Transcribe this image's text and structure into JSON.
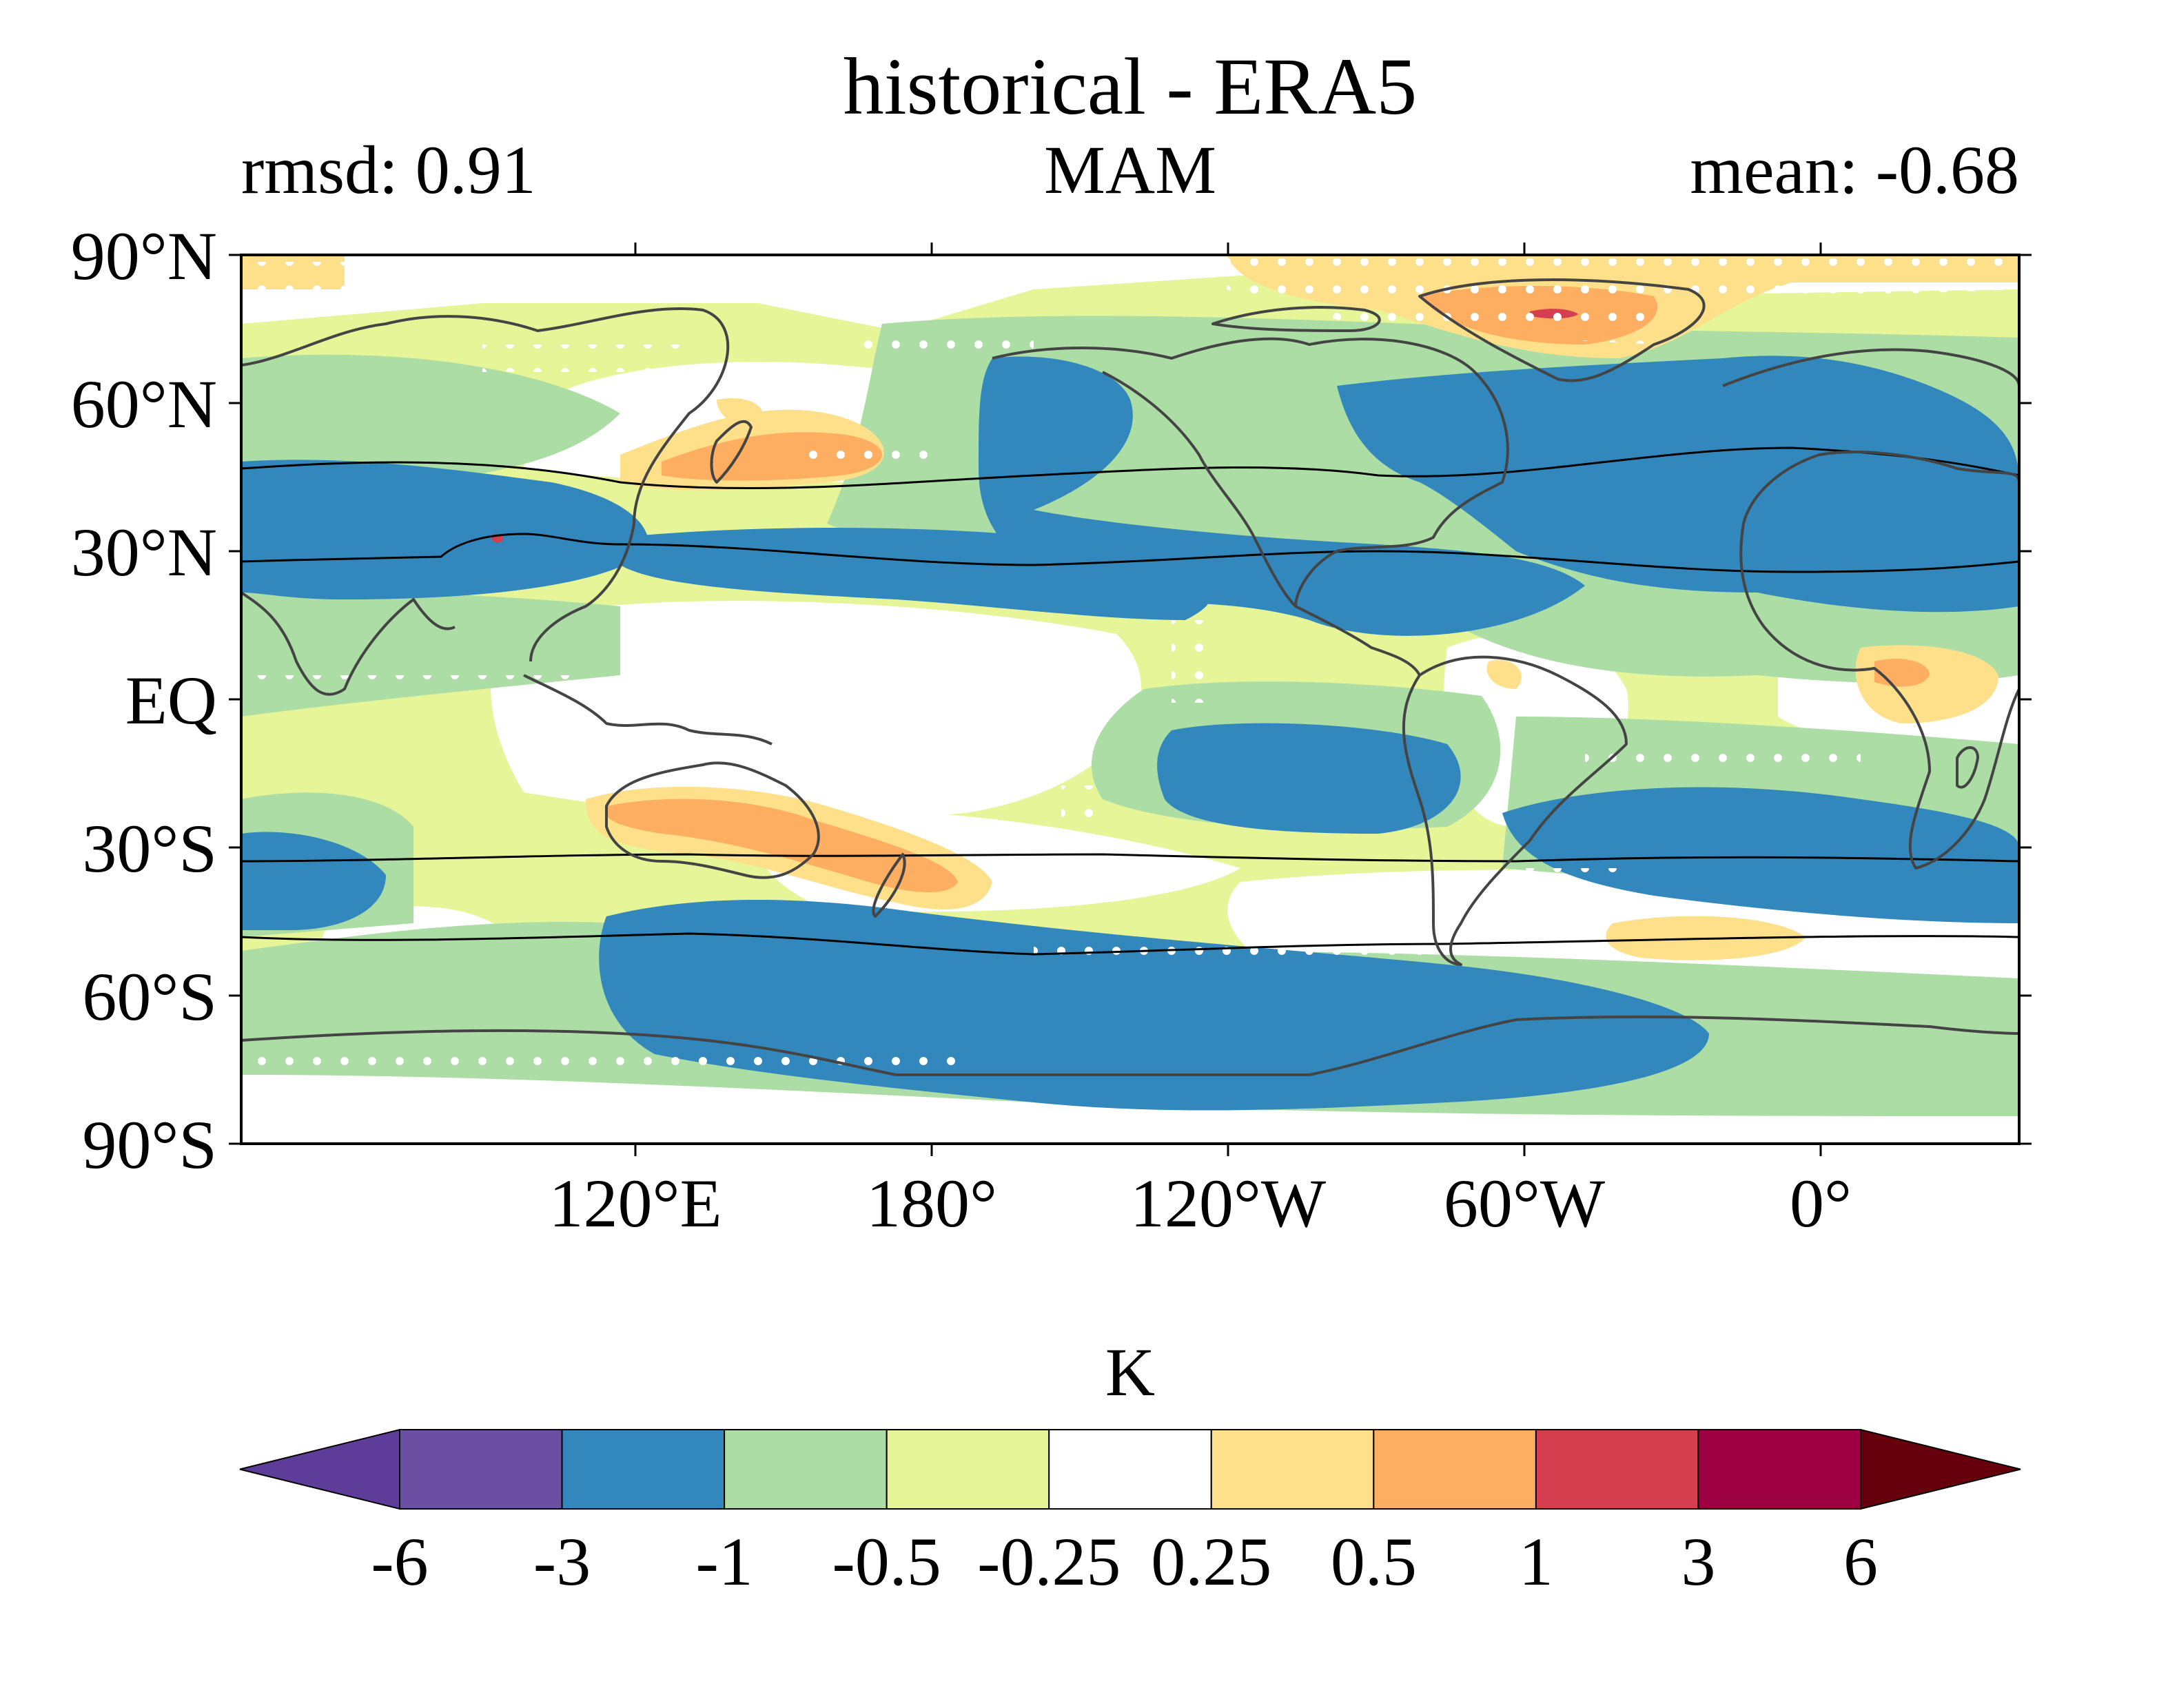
{
  "title": "historical - ERA5",
  "stats": {
    "rmsd": "rmsd: 0.91",
    "season": "MAM",
    "mean": "mean: -0.68"
  },
  "axes": {
    "y_ticks": [
      "90°N",
      "60°N",
      "30°N",
      "EQ",
      "30°S",
      "60°S",
      "90°S"
    ],
    "x_ticks": [
      "120°E",
      "180°",
      "120°W",
      "60°W",
      "0°"
    ]
  },
  "colorbar": {
    "label": "K",
    "levels": [
      "-6",
      "-3",
      "-1",
      "-0.5",
      "-0.25",
      "0.25",
      "0.5",
      "1",
      "3",
      "6"
    ],
    "colors": {
      "below_min": "#5e3c99",
      "bins": [
        "#6a4fa3",
        "#3288bd",
        "#abdda4",
        "#e6f598",
        "#ffffff",
        "#fee08b",
        "#fdae61",
        "#d53e4f",
        "#9e0142"
      ],
      "above_max": "#67000d"
    }
  },
  "map_colors": {
    "blue": "#3288bd",
    "green": "#abdda4",
    "yellow": "#e6f598",
    "lightorange": "#fee08b",
    "orange": "#fdae61",
    "red": "#d53e4f",
    "coast": "#444444"
  }
}
